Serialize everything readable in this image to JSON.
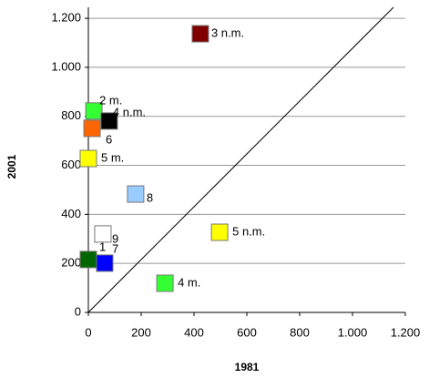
{
  "chart_data": {
    "type": "scatter",
    "x_label": "1981",
    "y_label": "2001",
    "x": [
      424,
      21,
      79,
      14,
      0,
      179,
      55,
      0,
      62,
      497,
      290
    ],
    "values": [
      1137,
      822,
      781,
      751,
      628,
      483,
      320,
      216,
      201,
      327,
      119
    ],
    "labels": [
      "3 n.m.",
      "2 m.",
      "4 n.m.",
      "6",
      "5 m.",
      "8",
      "9",
      "1",
      "7",
      "5 n.m.",
      "4 m."
    ],
    "colors": [
      "#800000",
      "#33ff33",
      "#000000",
      "#ff6600",
      "#ffff00",
      "#99ccff",
      "#ffffff",
      "#006600",
      "#0000ff",
      "#ffff00",
      "#33ff33"
    ],
    "xlim": [
      0,
      1200
    ],
    "ylim": [
      0,
      1245
    ],
    "xticks": [
      0,
      200,
      400,
      600,
      800,
      {
        "value": 1000,
        "label": "1.000"
      },
      {
        "value": 1200,
        "label": "1.200"
      }
    ],
    "yticks": [
      0,
      200,
      400,
      600,
      800,
      {
        "value": 1000,
        "label": "1.000"
      },
      {
        "value": 1200,
        "label": "1.200"
      }
    ],
    "grid": true
  }
}
